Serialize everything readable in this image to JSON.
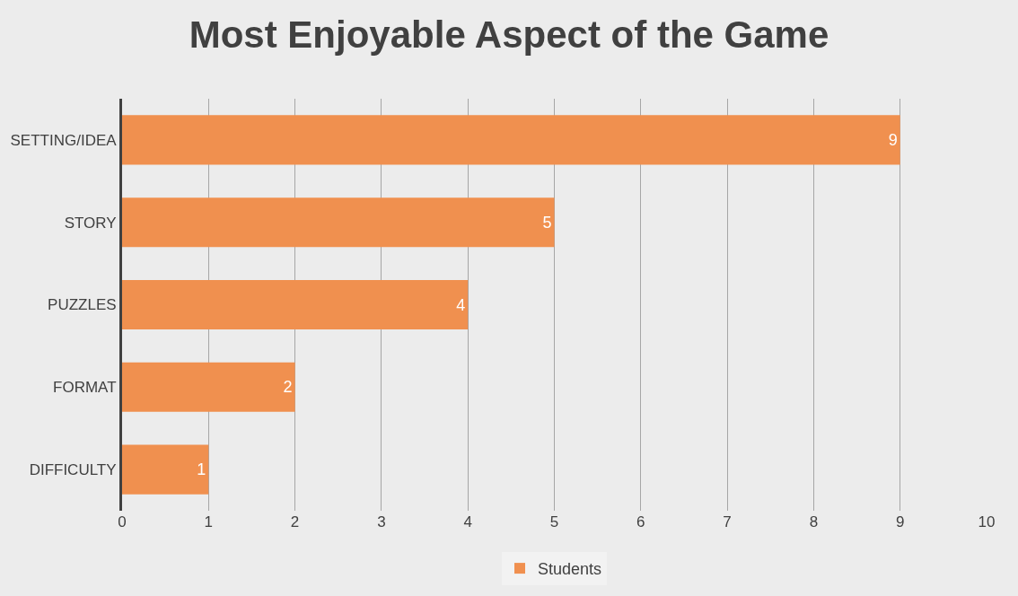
{
  "chart_data": {
    "type": "bar",
    "orientation": "horizontal",
    "title": "Most Enjoyable Aspect of the Game",
    "categories": [
      "SETTING/IDEA",
      "STORY",
      "PUZZLES",
      "FORMAT",
      "DIFFICULTY"
    ],
    "series": [
      {
        "name": "Students",
        "color": "#f0904f",
        "values": [
          9,
          5,
          4,
          2,
          1
        ]
      }
    ],
    "xlim": [
      0,
      10
    ],
    "xticks": [
      0,
      1,
      2,
      3,
      4,
      5,
      6,
      7,
      8,
      9,
      10
    ],
    "grid": "x",
    "legend": "bottom",
    "data_labels": true
  }
}
